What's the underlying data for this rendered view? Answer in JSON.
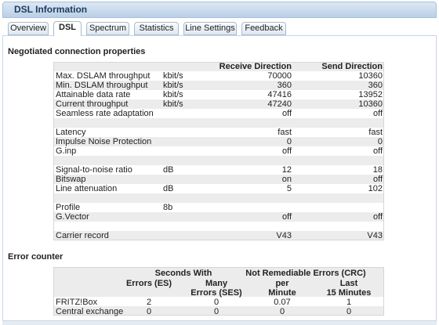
{
  "header": {
    "title": "DSL Information"
  },
  "tabs": [
    "Overview",
    "DSL",
    "Spectrum",
    "Statistics",
    "Line Settings",
    "Feedback"
  ],
  "active_tab": 1,
  "connection": {
    "title": "Negotiated connection properties",
    "columns": [
      "Receive Direction",
      "Send Direction"
    ],
    "groups": [
      [
        {
          "label": "Max. DSLAM throughput",
          "unit": "kbit/s",
          "receive": 70000,
          "send": 10360
        },
        {
          "label": "Min. DSLAM throughput",
          "unit": "kbit/s",
          "receive": 360,
          "send": 360
        },
        {
          "label": "Attainable data rate",
          "unit": "kbit/s",
          "receive": 47416,
          "send": 13952
        },
        {
          "label": "Current throughput",
          "unit": "kbit/s",
          "receive": 47240,
          "send": 10360
        },
        {
          "label": "Seamless rate adaptation",
          "receive": "off",
          "send": "off"
        }
      ],
      [
        {
          "label": "Latency",
          "receive": "fast",
          "send": "fast"
        },
        {
          "label": "Impulse Noise Protection",
          "receive": 0,
          "send": 0
        },
        {
          "label": "G.inp",
          "receive": "off",
          "send": "off"
        }
      ],
      [
        {
          "label": "Signal-to-noise ratio",
          "unit": "dB",
          "receive": 12,
          "send": 18
        },
        {
          "label": "Bitswap",
          "receive": "on",
          "send": "off"
        },
        {
          "label": "Line attenuation",
          "unit": "dB",
          "receive": 5,
          "send": 102
        }
      ],
      [
        {
          "label": "Profile",
          "unit": "8b"
        },
        {
          "label": "G.Vector",
          "receive": "off",
          "send": "off"
        }
      ],
      [
        {
          "label": "Carrier record",
          "receive": "V43",
          "send": "V43"
        }
      ]
    ]
  },
  "errors": {
    "title": "Error counter",
    "groups": [
      "Seconds With",
      "Not Remediable Errors (CRC)"
    ],
    "columns": [
      "Errors (ES)",
      "Many\nErrors (SES)",
      "per\nMinute",
      "Last\n15 Minutes"
    ],
    "rows": [
      {
        "label": "FRITZ!Box",
        "values": [
          2,
          0,
          0.07,
          1
        ]
      },
      {
        "label": "Central exchange",
        "values": [
          0,
          0,
          0,
          0
        ]
      }
    ]
  }
}
